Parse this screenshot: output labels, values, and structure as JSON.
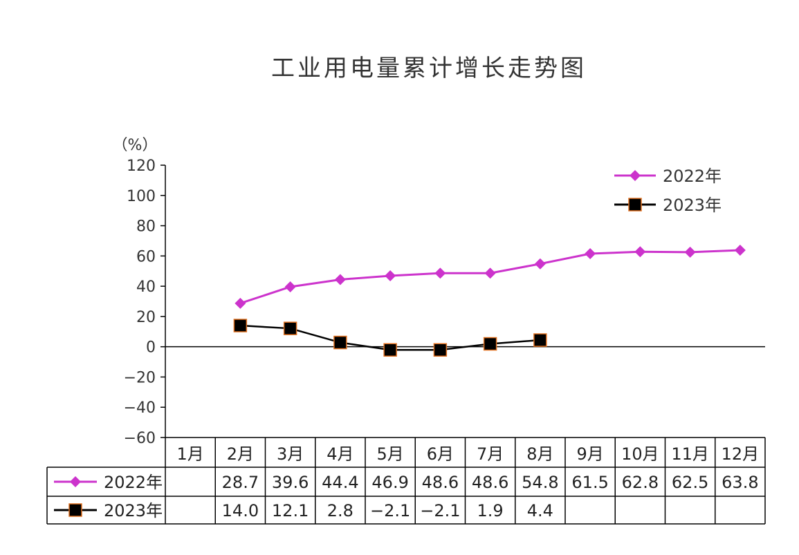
{
  "chart_data": {
    "type": "line",
    "title": "工业用电量累计增长走势图",
    "ylabel": "（%）",
    "ylim": [
      -60,
      120
    ],
    "yticks": [
      "120",
      "100",
      "80",
      "60",
      "40",
      "20",
      "0",
      "−20",
      "−40",
      "−60"
    ],
    "categories": [
      "1月",
      "2月",
      "3月",
      "4月",
      "5月",
      "6月",
      "7月",
      "8月",
      "9月",
      "10月",
      "11月",
      "12月"
    ],
    "series": [
      {
        "name": "2022年",
        "color": "#cc33cc",
        "marker": "diamond",
        "values": [
          null,
          28.7,
          39.6,
          44.4,
          46.9,
          48.6,
          48.6,
          54.8,
          61.5,
          62.8,
          62.5,
          63.8
        ],
        "table": [
          "",
          "28.7",
          "39.6",
          "44.4",
          "46.9",
          "48.6",
          "48.6",
          "54.8",
          "61.5",
          "62.8",
          "62.5",
          "63.8"
        ]
      },
      {
        "name": "2023年",
        "color": "#000000",
        "marker_edge": "#e07020",
        "marker": "square",
        "values": [
          null,
          14.0,
          12.1,
          2.8,
          -2.1,
          -2.1,
          1.9,
          4.4,
          null,
          null,
          null,
          null
        ],
        "table": [
          "",
          "14.0",
          "12.1",
          "2.8",
          "−2.1",
          "−2.1",
          "1.9",
          "4.4",
          "",
          "",
          "",
          ""
        ]
      }
    ],
    "legend": "top-right"
  }
}
